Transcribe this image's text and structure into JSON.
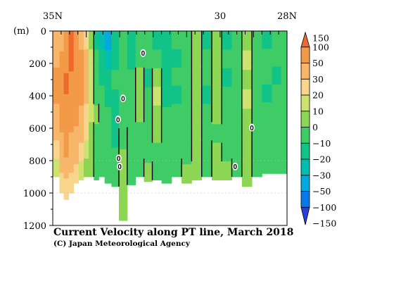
{
  "chart_data": {
    "type": "heatmap",
    "title": "Current Velocity along PT line, March 2018",
    "credit": "(C) Japan Meteorological Agency",
    "y_unit_label": "(m)",
    "x_axis": {
      "range": [
        35,
        28
      ],
      "tick_labels": [
        {
          "lat": 35,
          "label": "35N"
        },
        {
          "lat": 30,
          "label": "30"
        },
        {
          "lat": 28,
          "label": "28N"
        }
      ]
    },
    "y_axis": {
      "range": [
        0,
        1200
      ],
      "inverted": true,
      "tick_labels": [
        {
          "depth": 0,
          "label": "0"
        },
        {
          "depth": 200,
          "label": "200"
        },
        {
          "depth": 400,
          "label": "400"
        },
        {
          "depth": 600,
          "label": "600"
        },
        {
          "depth": 800,
          "label": "800"
        },
        {
          "depth": 1000,
          "label": "1000"
        },
        {
          "depth": 1200,
          "label": "1200"
        }
      ]
    },
    "colorbar": {
      "levels": [
        "150",
        "100",
        "50",
        "30",
        "20",
        "10",
        "0",
        "−10",
        "−20",
        "−30",
        "−50",
        "−100",
        "−150"
      ],
      "bins": [
        {
          "range": [
            100,
            150
          ],
          "color": "#ec6a2c"
        },
        {
          "range": [
            50,
            100
          ],
          "color": "#f39a48"
        },
        {
          "range": [
            30,
            50
          ],
          "color": "#f7b669"
        },
        {
          "range": [
            20,
            30
          ],
          "color": "#f8d48d"
        },
        {
          "range": [
            10,
            20
          ],
          "color": "#cde36f"
        },
        {
          "range": [
            0,
            10
          ],
          "color": "#8dd654"
        },
        {
          "range": [
            -10,
            0
          ],
          "color": "#3fcc66"
        },
        {
          "range": [
            -20,
            -10
          ],
          "color": "#12c388"
        },
        {
          "range": [
            -30,
            -20
          ],
          "color": "#00bfae"
        },
        {
          "range": [
            -50,
            -30
          ],
          "color": "#00a9df"
        },
        {
          "range": [
            -100,
            -50
          ],
          "color": "#0a78e8"
        },
        {
          "range": [
            -150,
            -100
          ],
          "color": "#2a3fe0"
        }
      ]
    },
    "columns": [
      {
        "lat": 34.85,
        "max_depth": 900,
        "v": [
          30,
          40,
          50,
          50,
          40,
          30,
          20,
          10
        ]
      },
      {
        "lat": 34.75,
        "max_depth": 1000,
        "v": [
          40,
          50,
          70,
          60,
          50,
          40,
          30,
          20
        ]
      },
      {
        "lat": 34.6,
        "max_depth": 1040,
        "v": [
          60,
          90,
          100,
          80,
          60,
          50,
          35,
          25
        ]
      },
      {
        "lat": 34.45,
        "max_depth": 1000,
        "v": [
          130,
          100,
          80,
          70,
          60,
          40,
          30,
          20
        ]
      },
      {
        "lat": 34.3,
        "max_depth": 940,
        "v": [
          60,
          70,
          80,
          70,
          50,
          40,
          30,
          20
        ]
      },
      {
        "lat": 34.15,
        "max_depth": 920,
        "v": [
          40,
          50,
          60,
          50,
          40,
          30,
          20,
          10
        ]
      },
      {
        "lat": 34.0,
        "max_depth": 900,
        "v": [
          20,
          30,
          30,
          30,
          20,
          20,
          10,
          5
        ]
      },
      {
        "lat": 33.85,
        "max_depth": 900,
        "v": [
          5,
          10,
          10,
          10,
          10,
          5,
          0,
          0
        ]
      },
      {
        "lat": 33.7,
        "max_depth": 920,
        "v": [
          -20,
          -10,
          -10,
          -5,
          0,
          -5,
          -5,
          -5
        ]
      },
      {
        "lat": 33.55,
        "max_depth": 900,
        "v": [
          -30,
          -20,
          -15,
          -10,
          -10,
          -10,
          -5,
          -5
        ]
      },
      {
        "lat": 33.35,
        "max_depth": 940,
        "v": [
          -40,
          -25,
          -20,
          -15,
          -10,
          -10,
          -10,
          -10
        ]
      },
      {
        "lat": 33.15,
        "max_depth": 960,
        "v": [
          -20,
          -15,
          -10,
          -15,
          -20,
          -15,
          -10,
          -5
        ]
      },
      {
        "lat": 32.9,
        "max_depth": 1170,
        "v": [
          -10,
          -10,
          -10,
          -5,
          -5,
          0,
          5,
          5
        ]
      },
      {
        "lat": 32.65,
        "max_depth": 950,
        "v": [
          -20,
          -15,
          -10,
          -10,
          -5,
          -5,
          -5,
          -5
        ]
      },
      {
        "lat": 32.4,
        "max_depth": 900,
        "v": [
          -10,
          -5,
          5,
          5,
          0,
          -5,
          -5,
          -5
        ]
      },
      {
        "lat": 32.15,
        "max_depth": 930,
        "v": [
          -10,
          -10,
          -15,
          -10,
          -10,
          -5,
          -5,
          0
        ]
      },
      {
        "lat": 31.9,
        "max_depth": 920,
        "v": [
          -15,
          -10,
          5,
          10,
          5,
          0,
          -5,
          -5
        ]
      },
      {
        "lat": 31.6,
        "max_depth": 940,
        "v": [
          -20,
          -15,
          -20,
          -15,
          -10,
          -10,
          -5,
          -5
        ]
      },
      {
        "lat": 31.3,
        "max_depth": 900,
        "v": [
          -10,
          -15,
          -10,
          -15,
          -10,
          -10,
          -5,
          -5
        ]
      },
      {
        "lat": 31.0,
        "max_depth": 940,
        "v": [
          -10,
          -5,
          -10,
          -10,
          -5,
          -5,
          -5,
          0
        ]
      },
      {
        "lat": 30.7,
        "max_depth": 920,
        "v": [
          0,
          5,
          5,
          5,
          0,
          5,
          5,
          0
        ]
      },
      {
        "lat": 30.4,
        "max_depth": 900,
        "v": [
          -15,
          -10,
          -10,
          -15,
          -10,
          -10,
          -5,
          -5
        ]
      },
      {
        "lat": 30.1,
        "max_depth": 920,
        "v": [
          0,
          5,
          5,
          5,
          0,
          -5,
          0,
          5
        ]
      },
      {
        "lat": 29.8,
        "max_depth": 920,
        "v": [
          -15,
          -10,
          -15,
          -10,
          -10,
          -5,
          -5,
          0
        ]
      },
      {
        "lat": 29.5,
        "max_depth": 900,
        "v": [
          -10,
          -10,
          -10,
          -10,
          -5,
          -10,
          -5,
          -5
        ]
      },
      {
        "lat": 29.2,
        "max_depth": 960,
        "v": [
          5,
          10,
          5,
          10,
          5,
          5,
          0,
          5
        ]
      },
      {
        "lat": 28.9,
        "max_depth": 900,
        "v": [
          -5,
          -10,
          -10,
          -10,
          -10,
          -10,
          -5,
          -5
        ]
      },
      {
        "lat": 28.6,
        "max_depth": 880,
        "v": [
          -15,
          -10,
          -10,
          -15,
          -10,
          -10,
          -10,
          -10
        ]
      },
      {
        "lat": 28.3,
        "max_depth": 880,
        "v": [
          -10,
          -10,
          -15,
          -10,
          -10,
          -10,
          -10,
          -10
        ]
      },
      {
        "lat": 28.05,
        "max_depth": 880,
        "v": [
          -5,
          -10,
          -10,
          -10,
          -10,
          -10,
          -10,
          -10
        ]
      }
    ],
    "zero_labels": [
      {
        "lat": 32.3,
        "depth": 140,
        "text": "0"
      },
      {
        "lat": 32.9,
        "depth": 420,
        "text": "0"
      },
      {
        "lat": 33.05,
        "depth": 550,
        "text": "0"
      },
      {
        "lat": 33.03,
        "depth": 790,
        "text": "0"
      },
      {
        "lat": 33.0,
        "depth": 840,
        "text": "0"
      },
      {
        "lat": 29.05,
        "depth": 600,
        "text": "0"
      },
      {
        "lat": 29.55,
        "depth": 840,
        "text": "0"
      }
    ]
  }
}
